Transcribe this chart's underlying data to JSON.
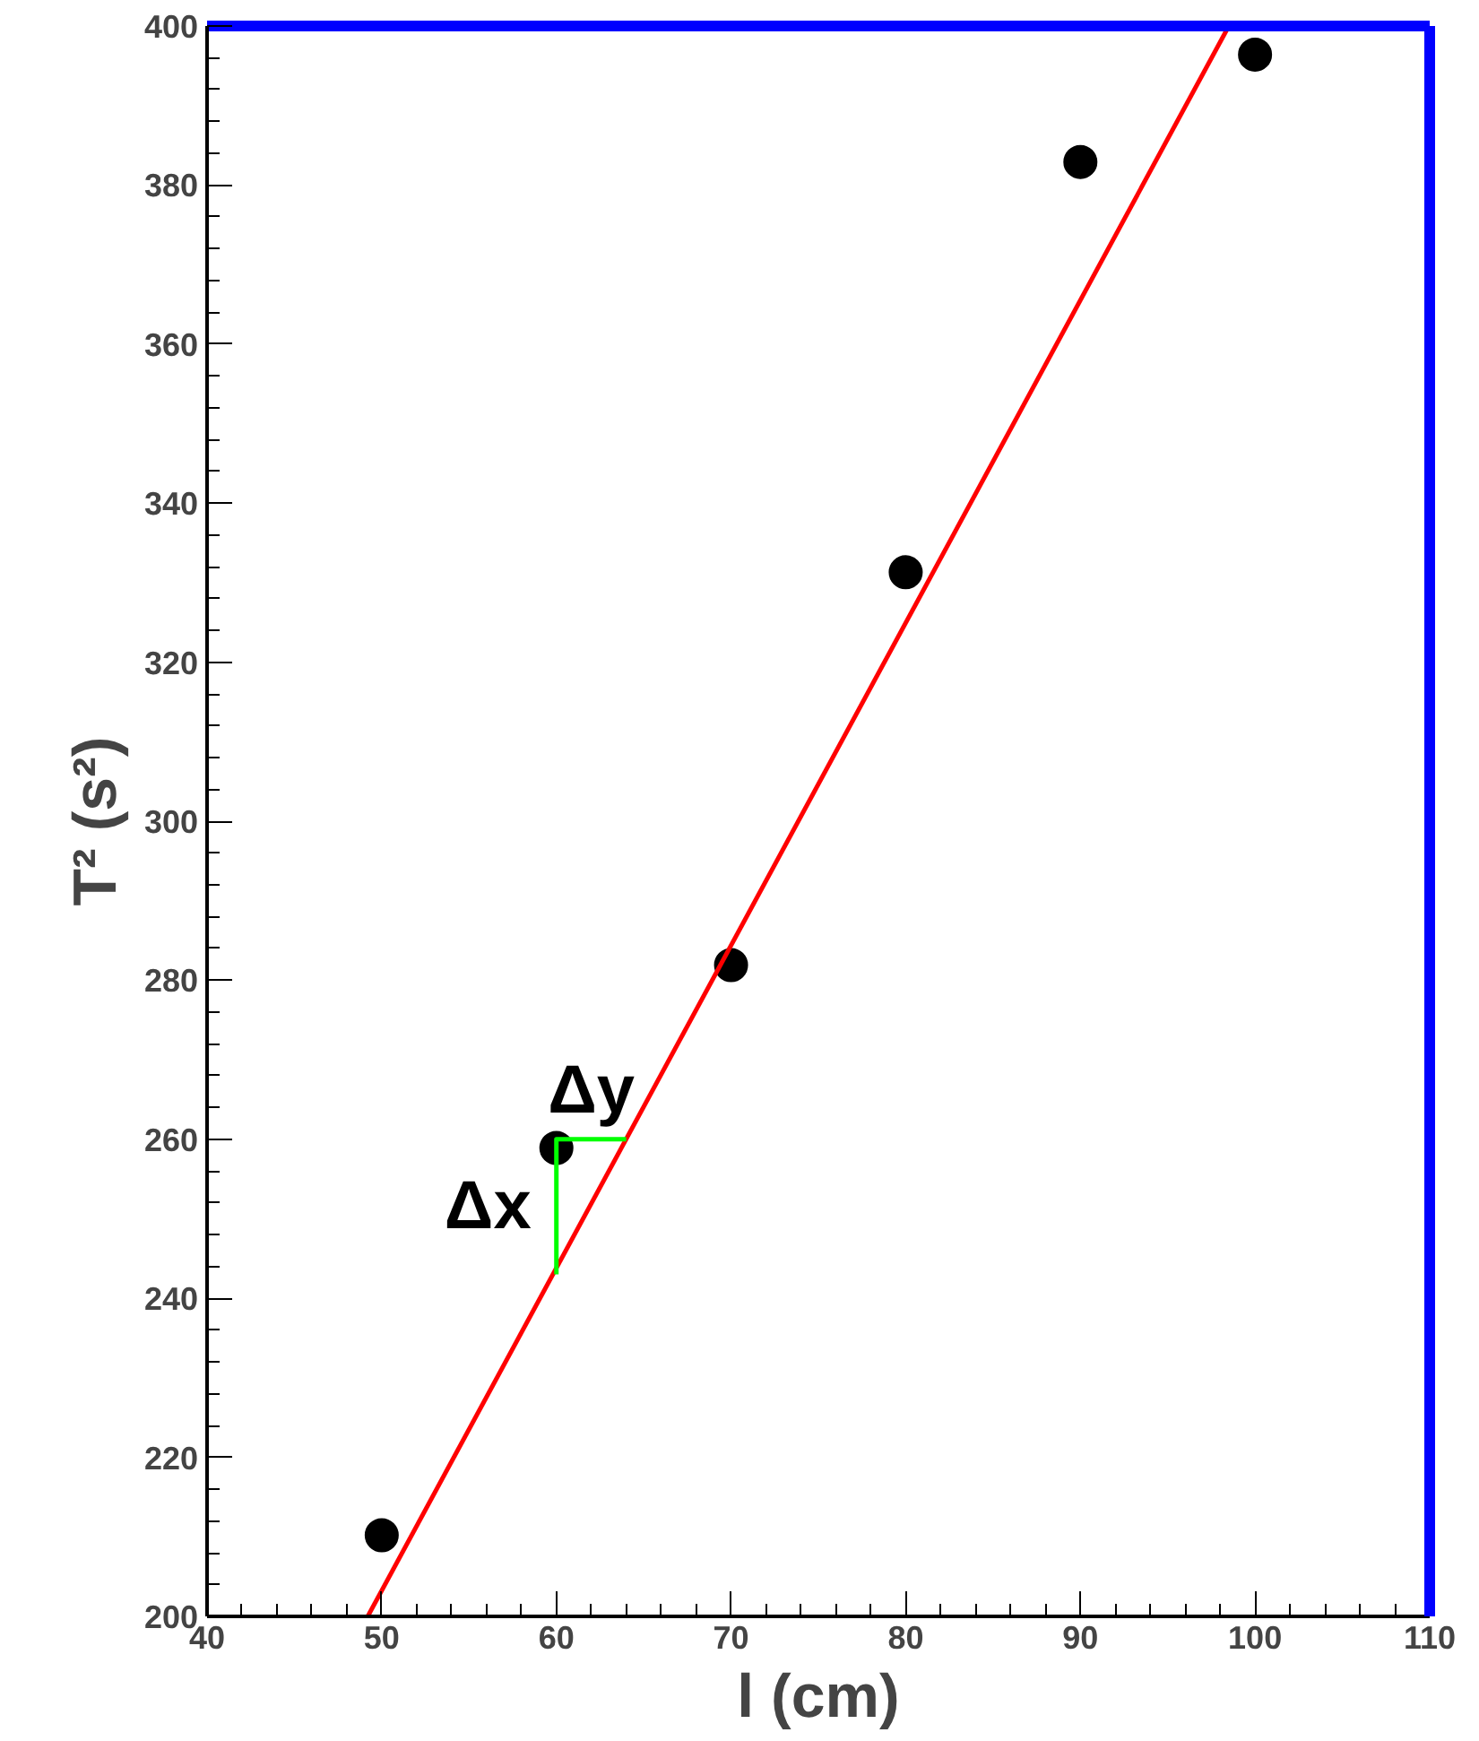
{
  "chart_data": {
    "type": "scatter",
    "xlabel": "l (cm)",
    "ylabel": "T² (s²)",
    "xlim": [
      40,
      110
    ],
    "ylim": [
      200,
      400
    ],
    "xticks": [
      40,
      50,
      60,
      70,
      80,
      90,
      100,
      110
    ],
    "yticks": [
      200,
      220,
      240,
      260,
      280,
      300,
      320,
      340,
      360,
      380,
      400
    ],
    "grid": false,
    "series": [
      {
        "marker": "circle",
        "color": "#000000",
        "x": [
          50,
          60,
          70,
          80,
          90,
          100
        ],
        "values": [
          210.2,
          258.9,
          281.9,
          331.3,
          382.9,
          396.4
        ]
      },
      {
        "type": "line",
        "marker": "none",
        "color": "#ff0000",
        "x": [
          49.2,
          98.5
        ],
        "values": [
          200,
          400
        ],
        "line_style": "solid"
      },
      {
        "type": "line",
        "marker": "none",
        "color": "#00ff00",
        "x": [
          64,
          60,
          60
        ],
        "values": [
          260,
          260,
          243
        ],
        "line_style": "solid"
      }
    ],
    "annotations": [
      "Δy",
      "Δx"
    ]
  }
}
